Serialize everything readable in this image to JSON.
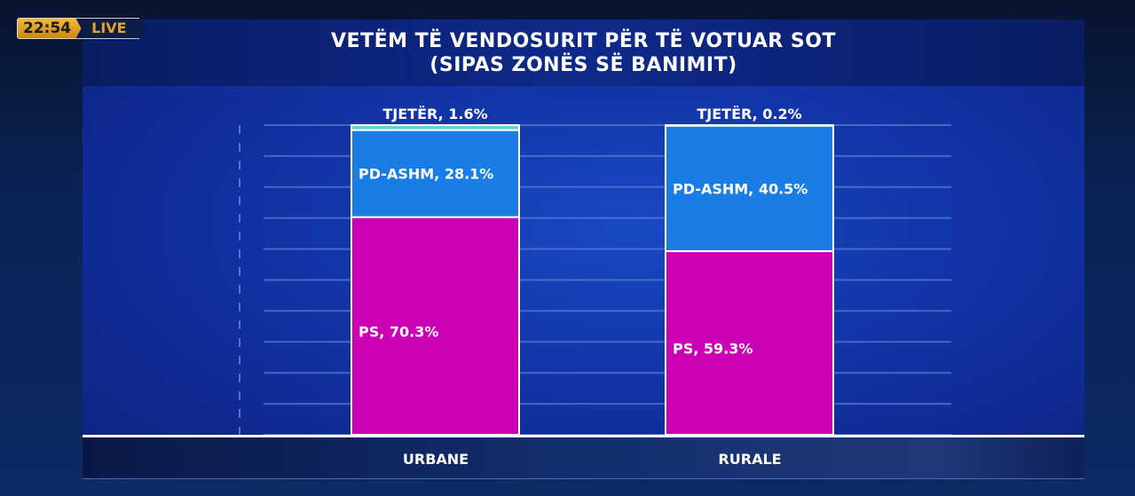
{
  "broadcast": {
    "time": "22:54",
    "live_label": "LIVE"
  },
  "chart_data": {
    "type": "bar",
    "stacked": true,
    "title": "VETËM TË VENDOSURIT PËR TË VOTUAR SOT",
    "subtitle": "(SIPAS ZONËS SË BANIMIT)",
    "categories": [
      "URBANE",
      "RURALE"
    ],
    "ylim": [
      0,
      100
    ],
    "grid": true,
    "series": [
      {
        "name": "PS",
        "values": [
          70.3,
          59.3
        ],
        "color": "#cc00b4",
        "labels": [
          "PS, 70.3%",
          "PS, 59.3%"
        ]
      },
      {
        "name": "PD-ASHM",
        "values": [
          28.1,
          40.5
        ],
        "color": "#1a7de6",
        "labels": [
          "PD-ASHM, 28.1%",
          "PD-ASHM, 40.5%"
        ]
      },
      {
        "name": "TJETËR",
        "values": [
          1.6,
          0.2
        ],
        "color": "#63d6c4",
        "labels": [
          "TJETËR, 1.6%",
          "TJETËR, 0.2%"
        ]
      }
    ]
  }
}
